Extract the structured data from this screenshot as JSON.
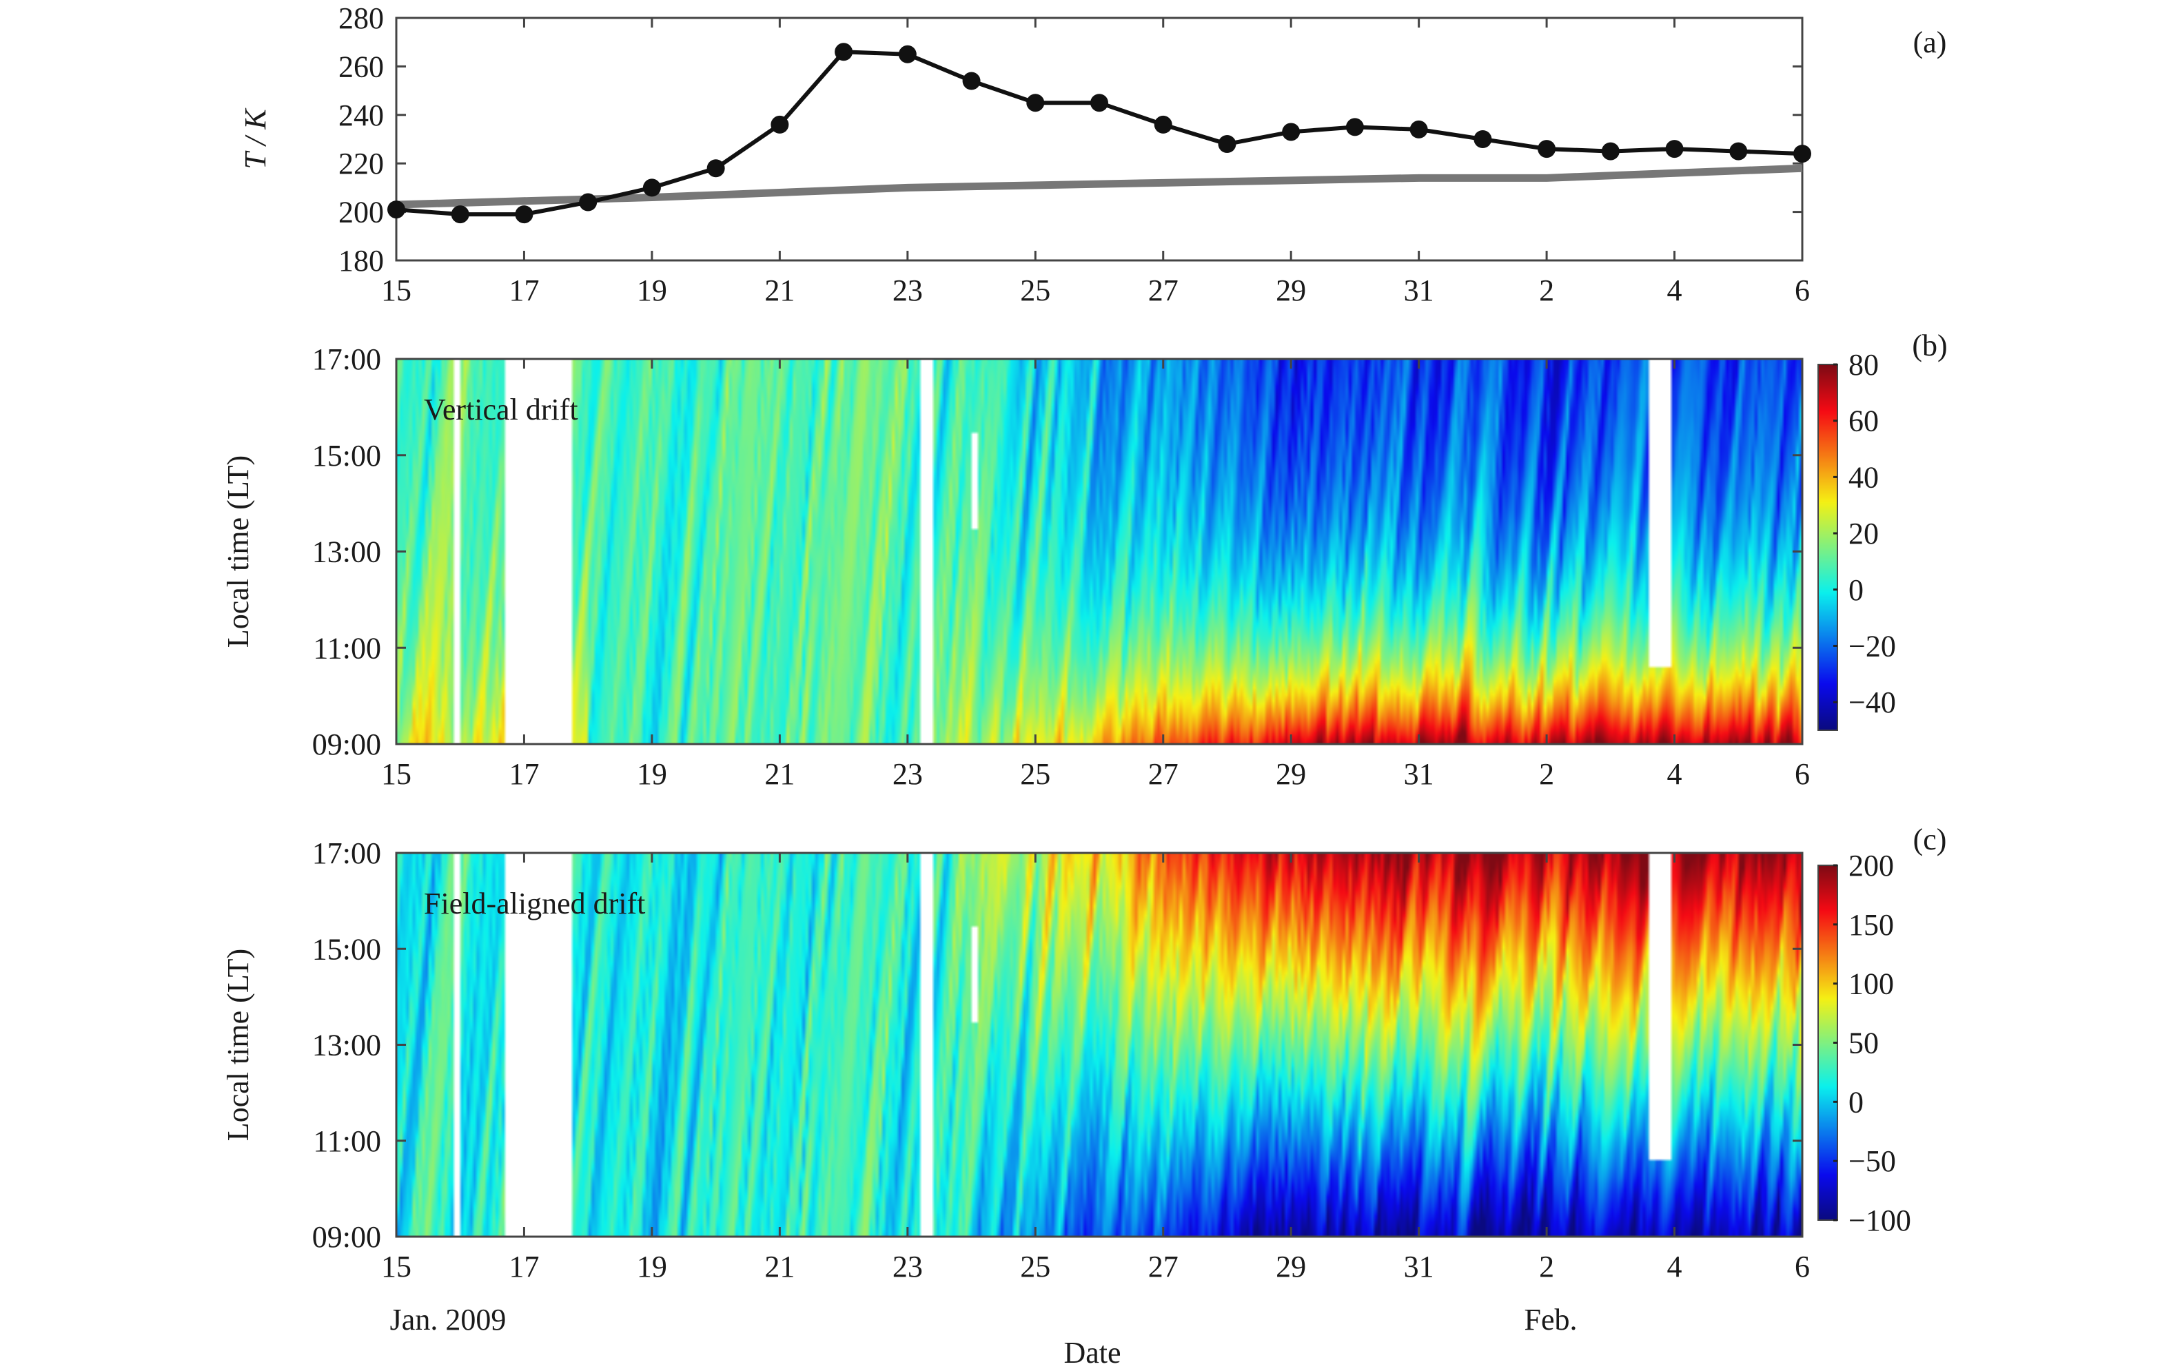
{
  "chart_data": [
    {
      "type": "line",
      "panel_label": "(a)",
      "ylabel": "T / K",
      "ylim": [
        180,
        280
      ],
      "yticks": [
        "180",
        "200",
        "220",
        "240",
        "260",
        "280"
      ],
      "xlim": [
        "2009-01-15",
        "2009-02-06"
      ],
      "xtick_labels": [
        "15",
        "17",
        "19",
        "21",
        "23",
        "25",
        "27",
        "29",
        "31",
        "2",
        "4",
        "6"
      ],
      "grid": false,
      "series": [
        {
          "style": "black line with circle markers",
          "color": "#111111",
          "x": [
            "2009-01-15",
            "2009-01-16",
            "2009-01-17",
            "2009-01-18",
            "2009-01-19",
            "2009-01-20",
            "2009-01-21",
            "2009-01-22",
            "2009-01-23",
            "2009-01-24",
            "2009-01-25",
            "2009-01-26",
            "2009-01-27",
            "2009-01-28",
            "2009-01-29",
            "2009-01-30",
            "2009-01-31",
            "2009-02-01",
            "2009-02-02",
            "2009-02-03",
            "2009-02-04",
            "2009-02-05",
            "2009-02-06"
          ],
          "values": [
            201,
            199,
            199,
            204,
            210,
            218,
            236,
            266,
            265,
            254,
            245,
            245,
            236,
            228,
            233,
            235,
            234,
            230,
            226,
            225,
            226,
            225,
            224
          ]
        },
        {
          "style": "thick gray line",
          "color": "#777777",
          "x": [
            "2009-01-15",
            "2009-01-19",
            "2009-01-23",
            "2009-01-27",
            "2009-01-29",
            "2009-01-31",
            "2009-02-02",
            "2009-02-04",
            "2009-02-06"
          ],
          "values": [
            203,
            206,
            210,
            212,
            213,
            214,
            214,
            216,
            218
          ]
        }
      ]
    },
    {
      "type": "heatmap",
      "panel_label": "(b)",
      "annotation": "Vertical drift",
      "ylabel": "Local time (LT)",
      "yticks": [
        "09:00",
        "11:00",
        "13:00",
        "15:00",
        "17:00"
      ],
      "xtick_labels": [
        "15",
        "17",
        "19",
        "21",
        "23",
        "25",
        "27",
        "29",
        "31",
        "2",
        "4",
        "6"
      ],
      "xlim": [
        "2009-01-15",
        "2009-02-06"
      ],
      "colorbar": {
        "range": [
          -50,
          80
        ],
        "ticks": [
          "80",
          "60",
          "40",
          "20",
          "0",
          "−20",
          "−40"
        ],
        "colormap": "jet"
      }
    },
    {
      "type": "heatmap",
      "panel_label": "(c)",
      "annotation": "Field-aligned drift",
      "ylabel": "Local time (LT)",
      "yticks": [
        "09:00",
        "11:00",
        "13:00",
        "15:00",
        "17:00"
      ],
      "xtick_labels": [
        "15",
        "17",
        "19",
        "21",
        "23",
        "25",
        "27",
        "29",
        "31",
        "2",
        "4",
        "6"
      ],
      "xlim": [
        "2009-01-15",
        "2009-02-06"
      ],
      "xlabel": "Date",
      "month_labels": [
        "Jan. 2009",
        "Feb."
      ],
      "colorbar": {
        "range": [
          -100,
          200
        ],
        "ticks": [
          "200",
          "150",
          "100",
          "50",
          "0",
          "−50",
          "−100"
        ],
        "colormap": "jet"
      }
    }
  ]
}
